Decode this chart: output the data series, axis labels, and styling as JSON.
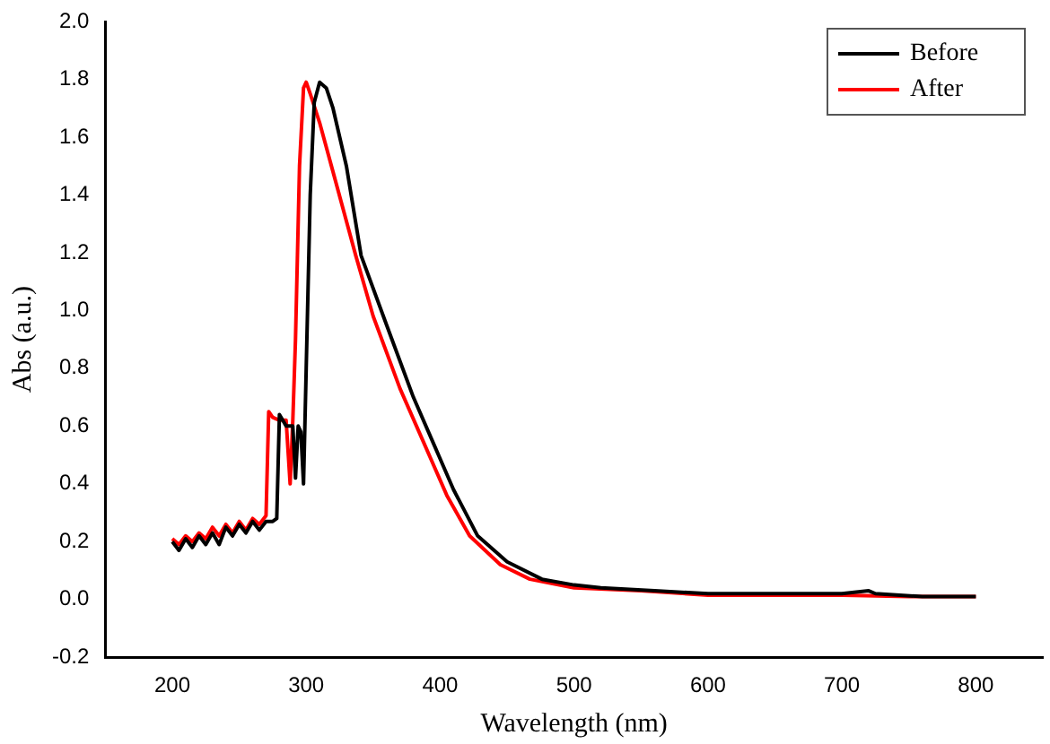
{
  "chart_data": {
    "type": "line",
    "xlabel": "Wavelength (nm)",
    "ylabel": "Abs (a.u.)",
    "xlim": [
      150,
      850
    ],
    "xticks": [
      200,
      300,
      400,
      500,
      600,
      700,
      800
    ],
    "ylim": [
      -0.2,
      2.0
    ],
    "yticks": [
      {
        "value": -0.2,
        "label": "-0.2"
      },
      {
        "value": 0,
        "label": "0.0"
      },
      {
        "value": 0.2,
        "label": "0.2"
      },
      {
        "value": 0.4,
        "label": "0.4"
      },
      {
        "value": 0.6,
        "label": "0.6"
      },
      {
        "value": 0.8,
        "label": "0.8"
      },
      {
        "value": 1.0,
        "label": "1.0"
      },
      {
        "value": 1.2,
        "label": "1.2"
      },
      {
        "value": 1.4,
        "label": "1.4"
      },
      {
        "value": 1.6,
        "label": "1.6"
      },
      {
        "value": 1.8,
        "label": "1.8"
      },
      {
        "value": 2.0,
        "label": "2.0"
      }
    ],
    "grid": false,
    "legend": "top right",
    "marker": "none",
    "line_style": "solid",
    "series": [
      {
        "name": "Before",
        "color": "#000000",
        "x": [
          200,
          205,
          210,
          215,
          220,
          225,
          230,
          235,
          240,
          245,
          250,
          255,
          260,
          265,
          270,
          275,
          278,
          280,
          285,
          290,
          292,
          294,
          296,
          298,
          300,
          303,
          306,
          310,
          315,
          320,
          330,
          341,
          360,
          380,
          395,
          410,
          428,
          450,
          476,
          500,
          520,
          560,
          600,
          650,
          700,
          720,
          725,
          760,
          800
        ],
        "values": [
          0.2,
          0.17,
          0.21,
          0.18,
          0.22,
          0.19,
          0.23,
          0.19,
          0.25,
          0.22,
          0.26,
          0.23,
          0.27,
          0.24,
          0.27,
          0.27,
          0.28,
          0.64,
          0.6,
          0.6,
          0.42,
          0.6,
          0.58,
          0.4,
          0.8,
          1.4,
          1.72,
          1.79,
          1.77,
          1.7,
          1.5,
          1.19,
          0.95,
          0.7,
          0.54,
          0.38,
          0.22,
          0.13,
          0.07,
          0.05,
          0.04,
          0.03,
          0.02,
          0.02,
          0.02,
          0.03,
          0.02,
          0.01,
          0.01
        ]
      },
      {
        "name": "After",
        "color": "#ff0000",
        "x": [
          200,
          205,
          210,
          215,
          220,
          225,
          230,
          235,
          240,
          245,
          250,
          255,
          260,
          265,
          270,
          272,
          275,
          280,
          285,
          288,
          290,
          292,
          295,
          298,
          300,
          303,
          310,
          320,
          337,
          350,
          370,
          388,
          405,
          422,
          445,
          467,
          500,
          550,
          600,
          650,
          700,
          750,
          800
        ],
        "values": [
          0.21,
          0.19,
          0.22,
          0.2,
          0.23,
          0.21,
          0.25,
          0.22,
          0.26,
          0.23,
          0.27,
          0.24,
          0.28,
          0.26,
          0.29,
          0.65,
          0.63,
          0.62,
          0.62,
          0.4,
          0.62,
          0.9,
          1.5,
          1.77,
          1.79,
          1.75,
          1.65,
          1.48,
          1.19,
          0.98,
          0.73,
          0.54,
          0.36,
          0.22,
          0.12,
          0.07,
          0.04,
          0.03,
          0.015,
          0.015,
          0.015,
          0.01,
          0.01
        ]
      }
    ]
  }
}
